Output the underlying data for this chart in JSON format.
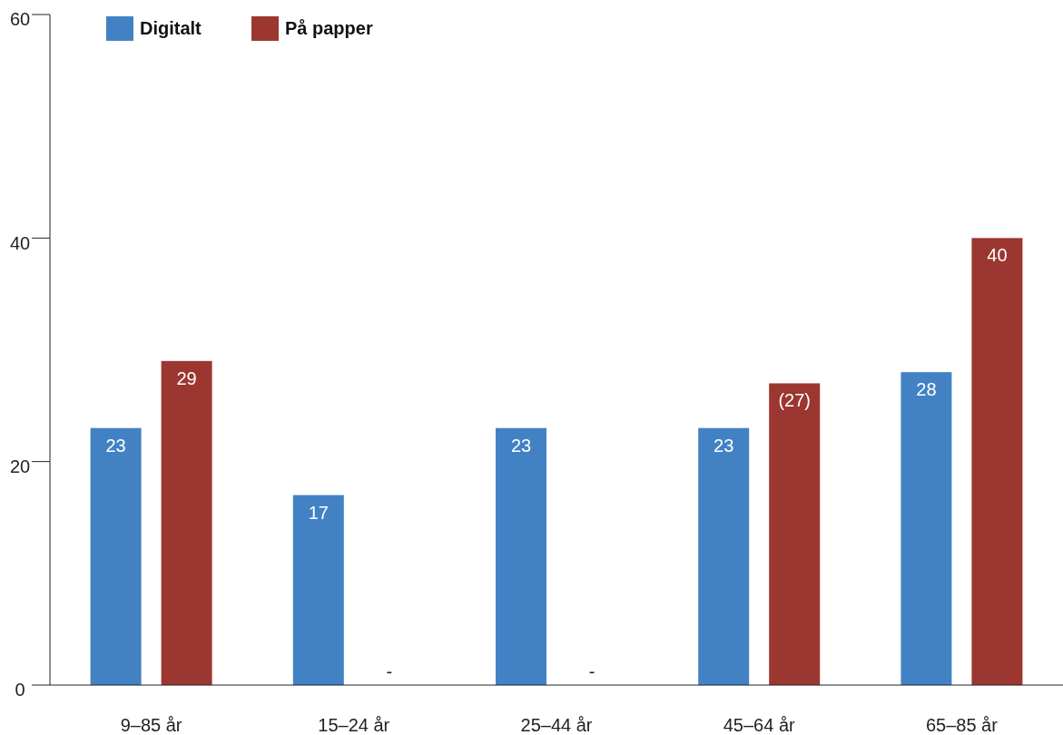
{
  "chart_data": {
    "type": "bar",
    "categories": [
      "9–85 år",
      "15–24 år",
      "25–44 år",
      "45–64 år",
      "65–85 år"
    ],
    "series": [
      {
        "name": "Digitalt",
        "color": "#4282c4",
        "values": [
          23,
          17,
          23,
          23,
          28
        ],
        "value_labels": [
          "23",
          "17",
          "23",
          "23",
          "28"
        ]
      },
      {
        "name": "På papper",
        "color": "#9c3630",
        "values": [
          29,
          null,
          null,
          27,
          40
        ],
        "value_labels": [
          "29",
          "-",
          "-",
          "(27)",
          "40"
        ]
      }
    ],
    "ylim": [
      0,
      60
    ],
    "yticks": [
      0,
      20,
      40,
      60
    ],
    "grid": false,
    "legend": "top left"
  }
}
